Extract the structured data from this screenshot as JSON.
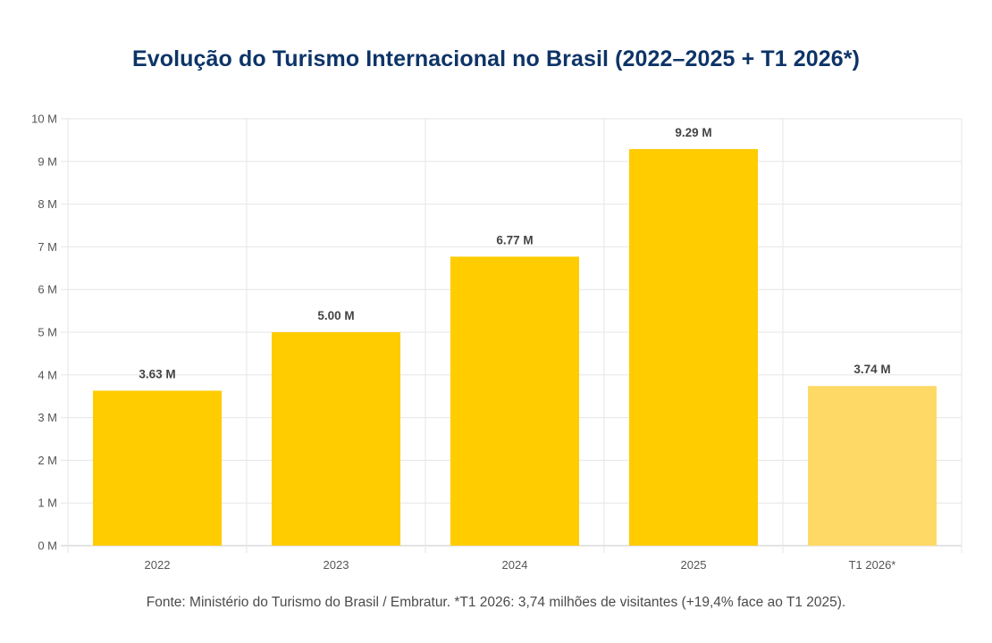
{
  "chart_data": {
    "type": "bar",
    "title": "Evolução do Turismo Internacional no Brasil (2022–2025 + T1 2026*)",
    "categories": [
      "2022",
      "2023",
      "2024",
      "2025",
      "T1 2026*"
    ],
    "values": [
      3.63,
      5.0,
      6.77,
      9.29,
      3.74
    ],
    "value_labels": [
      "3.63 M",
      "5.00 M",
      "6.77 M",
      "9.29 M",
      "3.74 M"
    ],
    "y_ticks": [
      0,
      1,
      2,
      3,
      4,
      5,
      6,
      7,
      8,
      9,
      10
    ],
    "y_tick_labels": [
      "0 M",
      "1 M",
      "2 M",
      "3 M",
      "4 M",
      "5 M",
      "6 M",
      "7 M",
      "8 M",
      "9 M",
      "10 M"
    ],
    "ylim": [
      0,
      10
    ],
    "xlabel": "",
    "ylabel": "",
    "grid": true,
    "bar_colors": [
      "#ffcc00",
      "#ffcc00",
      "#ffcc00",
      "#ffcc00",
      "#ffd966"
    ],
    "source": "Fonte: Ministério do Turismo do Brasil / Embratur. *T1 2026: 3,74 milhões de visitantes (+19,4% face ao T1 2025)."
  }
}
